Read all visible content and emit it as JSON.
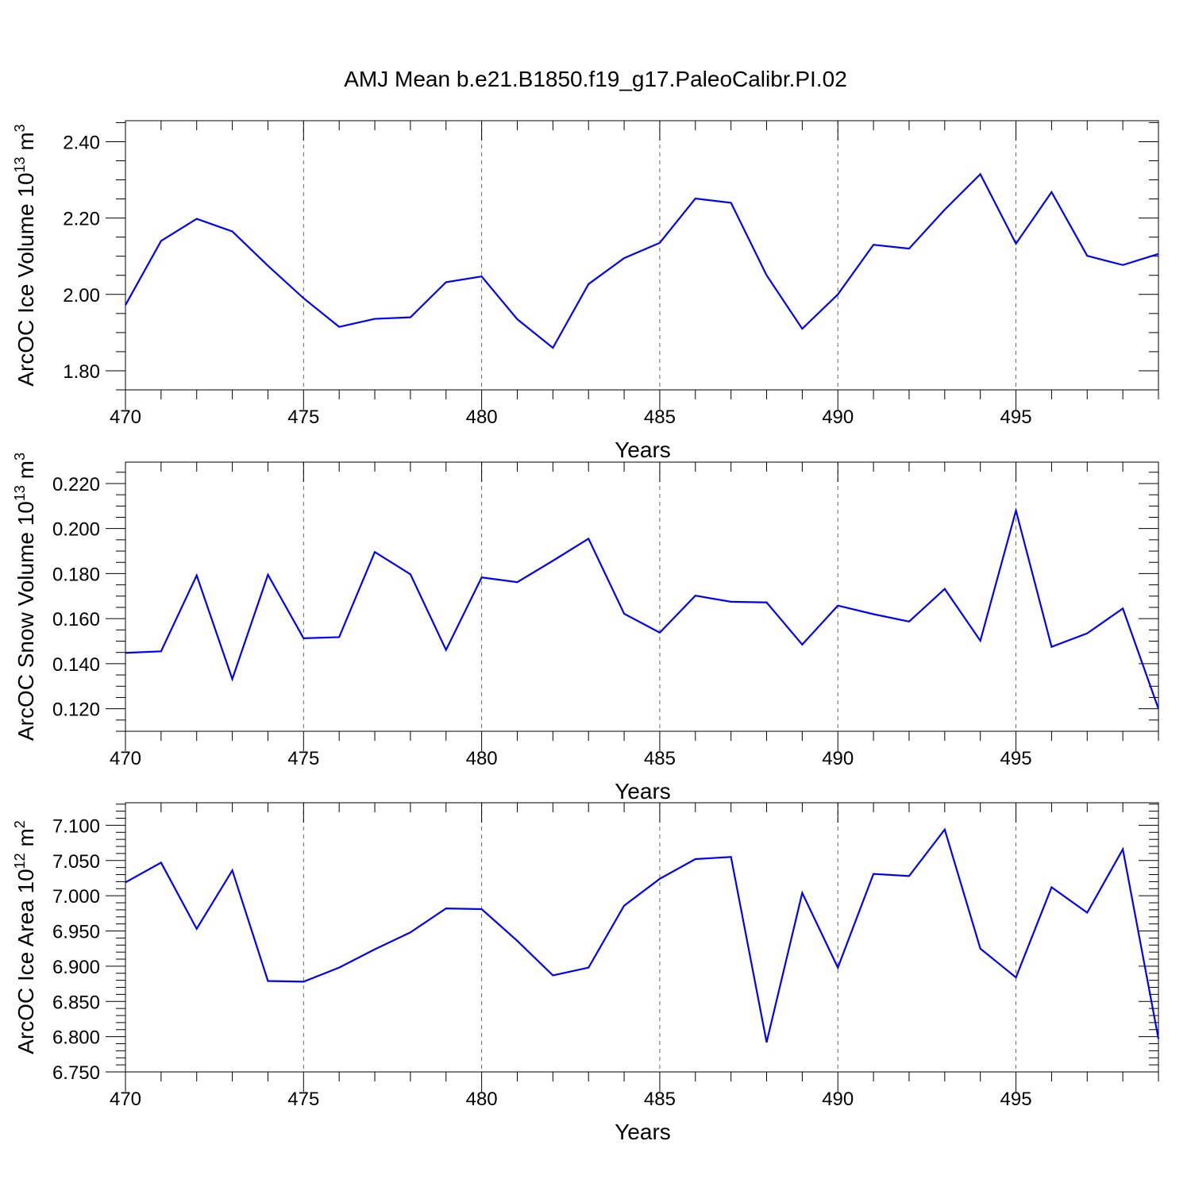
{
  "title": "AMJ Mean b.e21.B1850.f19_g17.PaleoCalibr.PI.02",
  "chart_data": [
    {
      "type": "line",
      "ylabel_main": "ArcOC Ice Volume 10",
      "ylabel_exp": "13",
      "ylabel_unit": " m",
      "ylabel_unit_exp": "3",
      "xlabel": "Years",
      "xlim": [
        470,
        499
      ],
      "ylim": [
        1.75,
        2.455
      ],
      "yticks": [
        1.8,
        2.0,
        2.2,
        2.4
      ],
      "ytick_labels": [
        "1.80",
        "2.00",
        "2.20",
        "2.40"
      ],
      "yminor_step": 0.05,
      "xticks": [
        470,
        475,
        480,
        485,
        490,
        495
      ],
      "xtick_labels": [
        "470",
        "475",
        "480",
        "485",
        "490",
        "495"
      ],
      "x": [
        470,
        471,
        472,
        473,
        474,
        475,
        476,
        477,
        478,
        479,
        480,
        481,
        482,
        483,
        484,
        485,
        486,
        487,
        488,
        489,
        490,
        491,
        492,
        493,
        494,
        495,
        496,
        497,
        498,
        499
      ],
      "series": [
        {
          "name": "ArcOC Ice Volume",
          "color": "#0000ff",
          "values": [
            1.972,
            2.14,
            2.198,
            2.165,
            2.075,
            1.99,
            1.915,
            1.936,
            1.94,
            2.032,
            2.047,
            1.935,
            1.86,
            2.027,
            2.095,
            2.135,
            2.251,
            2.24,
            2.05,
            1.91,
            2.0,
            2.13,
            2.12,
            2.222,
            2.315,
            2.133,
            2.268,
            2.101,
            2.077,
            2.106
          ]
        }
      ]
    },
    {
      "type": "line",
      "ylabel_main": "ArcOC Snow Volume 10",
      "ylabel_exp": "13",
      "ylabel_unit": " m",
      "ylabel_unit_exp": "3",
      "xlabel": "Years",
      "xlim": [
        470,
        499
      ],
      "ylim": [
        0.11,
        0.2295
      ],
      "yticks": [
        0.12,
        0.14,
        0.16,
        0.18,
        0.2,
        0.22
      ],
      "ytick_labels": [
        "0.120",
        "0.140",
        "0.160",
        "0.180",
        "0.200",
        "0.220"
      ],
      "yminor_step": 0.005,
      "xticks": [
        470,
        475,
        480,
        485,
        490,
        495
      ],
      "xtick_labels": [
        "470",
        "475",
        "480",
        "485",
        "490",
        "495"
      ],
      "x": [
        470,
        471,
        472,
        473,
        474,
        475,
        476,
        477,
        478,
        479,
        480,
        481,
        482,
        483,
        484,
        485,
        486,
        487,
        488,
        489,
        490,
        491,
        492,
        493,
        494,
        495,
        496,
        497,
        498,
        499
      ],
      "series": [
        {
          "name": "ArcOC Snow Volume",
          "color": "#0000ff",
          "values": [
            0.1448,
            0.1455,
            0.1792,
            0.1332,
            0.1795,
            0.1513,
            0.1518,
            0.1896,
            0.1797,
            0.1461,
            0.1783,
            0.1762,
            0.1857,
            0.1955,
            0.1622,
            0.1538,
            0.1702,
            0.1675,
            0.1672,
            0.1485,
            0.1658,
            0.162,
            0.1587,
            0.1732,
            0.1502,
            0.208,
            0.1475,
            0.1535,
            0.1645,
            0.12
          ]
        }
      ]
    },
    {
      "type": "line",
      "ylabel_main": "ArcOC Ice Area 10",
      "ylabel_exp": "12",
      "ylabel_unit": " m",
      "ylabel_unit_exp": "2",
      "xlabel": "Years",
      "xlim": [
        470,
        499
      ],
      "ylim": [
        6.75,
        7.132
      ],
      "yticks": [
        6.75,
        6.8,
        6.85,
        6.9,
        6.95,
        7.0,
        7.05,
        7.1
      ],
      "ytick_labels": [
        "6.750",
        "6.800",
        "6.850",
        "6.900",
        "6.950",
        "7.000",
        "7.050",
        "7.100"
      ],
      "yminor_step": 0.01,
      "xticks": [
        470,
        475,
        480,
        485,
        490,
        495
      ],
      "xtick_labels": [
        "470",
        "475",
        "480",
        "485",
        "490",
        "495"
      ],
      "x": [
        470,
        471,
        472,
        473,
        474,
        475,
        476,
        477,
        478,
        479,
        480,
        481,
        482,
        483,
        484,
        485,
        486,
        487,
        488,
        489,
        490,
        491,
        492,
        493,
        494,
        495,
        496,
        497,
        498,
        499
      ],
      "series": [
        {
          "name": "ArcOC Ice Area",
          "color": "#0000ff",
          "values": [
            7.019,
            7.047,
            6.953,
            7.036,
            6.879,
            6.878,
            6.898,
            6.924,
            6.948,
            6.982,
            6.981,
            6.936,
            6.887,
            6.898,
            6.986,
            7.024,
            7.052,
            7.055,
            6.792,
            7.004,
            6.898,
            7.031,
            7.028,
            7.094,
            6.925,
            6.884,
            7.012,
            6.976,
            7.066,
            6.797
          ]
        }
      ]
    }
  ]
}
